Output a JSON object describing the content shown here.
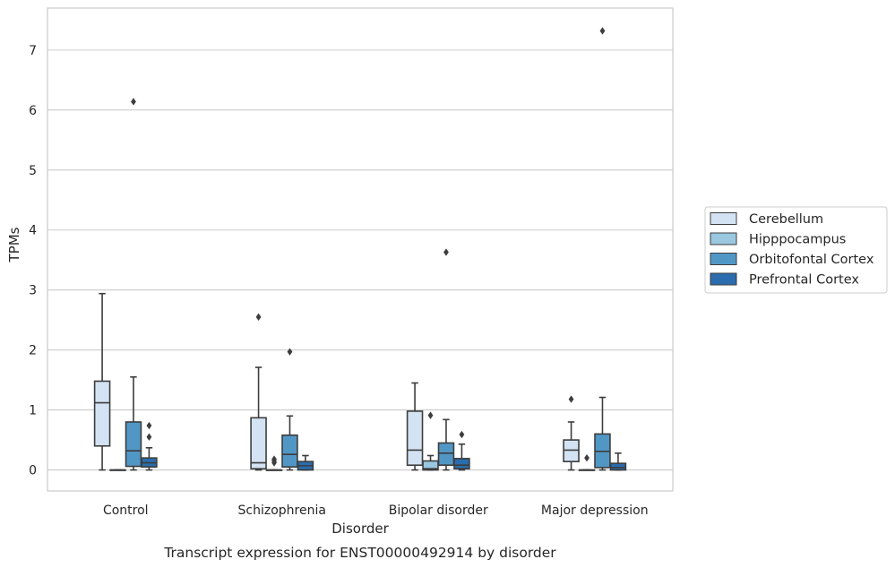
{
  "chart_data": {
    "type": "box",
    "title": "",
    "caption": "Transcript expression for ENST00000492914 by disorder",
    "xlabel": "Disorder",
    "ylabel": "TPMs",
    "ylim": [
      -0.35,
      7.7
    ],
    "yticks": [
      0,
      1,
      2,
      3,
      4,
      5,
      6,
      7
    ],
    "grid": "horizontal",
    "legend_position": "right",
    "categories": [
      "Control",
      "Schizophrenia",
      "Bipolar disorder",
      "Major depression"
    ],
    "series": [
      {
        "name": "Cerebellum",
        "color": "#d3e3f3",
        "boxes": [
          {
            "min": 0.0,
            "q1": 0.4,
            "median": 1.12,
            "q3": 1.48,
            "max": 2.94,
            "outliers": []
          },
          {
            "min": 0.0,
            "q1": 0.02,
            "median": 0.12,
            "q3": 0.87,
            "max": 1.71,
            "outliers": [
              2.55
            ]
          },
          {
            "min": 0.0,
            "q1": 0.08,
            "median": 0.33,
            "q3": 0.98,
            "max": 1.45,
            "outliers": []
          },
          {
            "min": 0.0,
            "q1": 0.14,
            "median": 0.33,
            "q3": 0.5,
            "max": 0.8,
            "outliers": [
              1.18
            ]
          }
        ]
      },
      {
        "name": "Hipppocampus",
        "color": "#9ac8e0",
        "boxes": [
          {
            "min": 0.0,
            "q1": 0.0,
            "median": 0.0,
            "q3": 0.0,
            "max": 0.0,
            "outliers": []
          },
          {
            "min": 0.0,
            "q1": 0.0,
            "median": 0.0,
            "q3": 0.0,
            "max": 0.0,
            "outliers": [
              0.12,
              0.15,
              0.18
            ]
          },
          {
            "min": 0.0,
            "q1": 0.0,
            "median": 0.02,
            "q3": 0.15,
            "max": 0.24,
            "outliers": [
              0.91
            ]
          },
          {
            "min": 0.0,
            "q1": 0.0,
            "median": 0.0,
            "q3": 0.0,
            "max": 0.0,
            "outliers": [
              0.2
            ]
          }
        ]
      },
      {
        "name": "Orbitofontal Cortex",
        "color": "#5197c6",
        "boxes": [
          {
            "min": 0.0,
            "q1": 0.06,
            "median": 0.32,
            "q3": 0.8,
            "max": 1.55,
            "outliers": [
              6.14
            ]
          },
          {
            "min": 0.0,
            "q1": 0.05,
            "median": 0.26,
            "q3": 0.58,
            "max": 0.9,
            "outliers": [
              1.97
            ]
          },
          {
            "min": 0.0,
            "q1": 0.08,
            "median": 0.28,
            "q3": 0.45,
            "max": 0.84,
            "outliers": [
              3.63
            ]
          },
          {
            "min": 0.0,
            "q1": 0.04,
            "median": 0.31,
            "q3": 0.6,
            "max": 1.21,
            "outliers": [
              7.32
            ]
          }
        ]
      },
      {
        "name": "Prefrontal Cortex",
        "color": "#2a6cad",
        "boxes": [
          {
            "min": 0.0,
            "q1": 0.05,
            "median": 0.12,
            "q3": 0.2,
            "max": 0.37,
            "outliers": [
              0.55,
              0.74
            ]
          },
          {
            "min": 0.0,
            "q1": 0.0,
            "median": 0.07,
            "q3": 0.14,
            "max": 0.24,
            "outliers": []
          },
          {
            "min": 0.0,
            "q1": 0.02,
            "median": 0.08,
            "q3": 0.19,
            "max": 0.43,
            "outliers": [
              0.59
            ]
          },
          {
            "min": 0.0,
            "q1": 0.0,
            "median": 0.04,
            "q3": 0.11,
            "max": 0.28,
            "outliers": []
          }
        ]
      }
    ]
  }
}
